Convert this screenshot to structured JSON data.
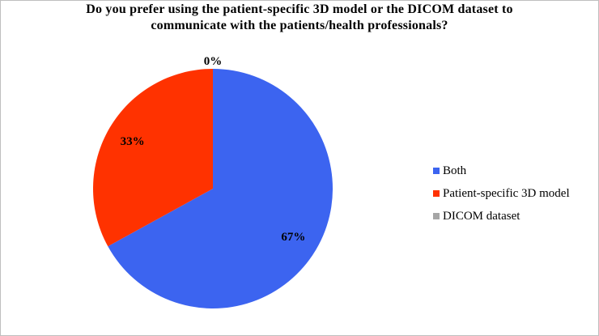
{
  "chart_data": {
    "type": "pie",
    "title": "Do you prefer using the patient-specific 3D model or the DICOM dataset to\ncommunicate  with  the patients/health  professionals?",
    "categories": [
      "Both",
      "Patient-specific 3D model",
      "DICOM dataset"
    ],
    "values": [
      67,
      33,
      0
    ],
    "data_labels": [
      "67%",
      "33%",
      "0%"
    ],
    "colors": [
      "#3c64f0",
      "#ff3200",
      "#a6a6a6"
    ],
    "legend_position": "right"
  }
}
